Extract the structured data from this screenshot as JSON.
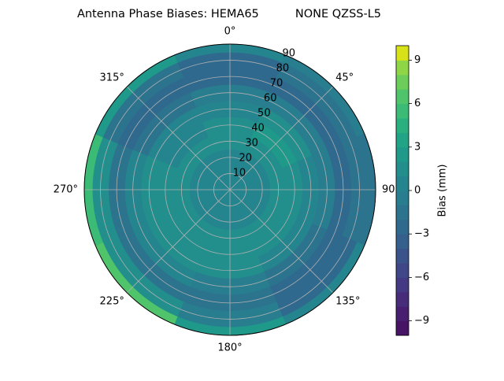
{
  "chart_data": {
    "type": "polar-contour",
    "title": "Antenna Phase Biases: HEMA65          NONE QZSS-L5",
    "azimuth": [
      0,
      45,
      90,
      135,
      180,
      225,
      270,
      315
    ],
    "zenith": [
      0,
      10,
      20,
      30,
      40,
      50,
      60,
      70,
      80,
      90
    ],
    "values": [
      [
        0.5,
        0.5,
        0.5,
        0.5,
        0.5,
        0.5,
        0.5,
        0.5
      ],
      [
        0.5,
        0.5,
        0.5,
        0.5,
        0.5,
        0.5,
        0.5,
        0.5
      ],
      [
        0.8,
        0.8,
        0.8,
        0.8,
        0.8,
        0.8,
        0.8,
        0.8
      ],
      [
        1.0,
        1.5,
        1.2,
        1.0,
        1.0,
        1.0,
        1.0,
        1.0
      ],
      [
        1.2,
        2.0,
        1.5,
        1.2,
        1.5,
        1.0,
        1.0,
        0.8
      ],
      [
        0.5,
        1.5,
        0.8,
        0.5,
        1.2,
        1.0,
        1.0,
        0.0
      ],
      [
        -1.0,
        -0.5,
        -1.0,
        -1.5,
        -0.5,
        0.0,
        0.0,
        -1.5
      ],
      [
        -2.5,
        -2.5,
        -2.5,
        -3.0,
        -2.0,
        -2.0,
        -1.5,
        -2.5
      ],
      [
        -2.5,
        -2.0,
        -2.0,
        -2.5,
        -1.0,
        1.0,
        1.5,
        -1.5
      ],
      [
        0.5,
        -1.0,
        -1.5,
        0.0,
        2.5,
        6.0,
        5.0,
        2.0
      ]
    ],
    "rlim": [
      0,
      90
    ],
    "rticks": [
      10,
      20,
      30,
      40,
      50,
      60,
      70,
      80,
      90
    ],
    "thetaticks": [
      {
        "value": 0,
        "label": "0°"
      },
      {
        "value": 45,
        "label": "45°"
      },
      {
        "value": 90,
        "label": "90°"
      },
      {
        "value": 135,
        "label": "135°"
      },
      {
        "value": 180,
        "label": "180°"
      },
      {
        "value": 225,
        "label": "225°"
      },
      {
        "value": 270,
        "label": "270°"
      },
      {
        "value": 315,
        "label": "315°"
      }
    ],
    "grid": true,
    "colorbar": {
      "label": "Bias (mm)",
      "lim": [
        -10,
        10
      ],
      "ticks": [
        {
          "value": -9,
          "label": "−9"
        },
        {
          "value": -6,
          "label": "−6"
        },
        {
          "value": -3,
          "label": "−3"
        },
        0,
        3,
        6,
        9
      ],
      "levels": [
        -10,
        -9,
        -8,
        -7,
        -6,
        -5,
        -4,
        -3,
        -2,
        -1,
        0,
        1,
        2,
        3,
        4,
        5,
        6,
        7,
        8,
        9,
        10
      ],
      "colors": [
        "#471365",
        "#481f70",
        "#472c7a",
        "#443983",
        "#3f4788",
        "#3a538b",
        "#355f8d",
        "#30698e",
        "#2c738e",
        "#287d8e",
        "#25858e",
        "#228f8d",
        "#1f998a",
        "#21a386",
        "#2ab07f",
        "#3bbb75",
        "#50c46a",
        "#6ccd5a",
        "#8ed645",
        "#d8e219"
      ]
    }
  }
}
